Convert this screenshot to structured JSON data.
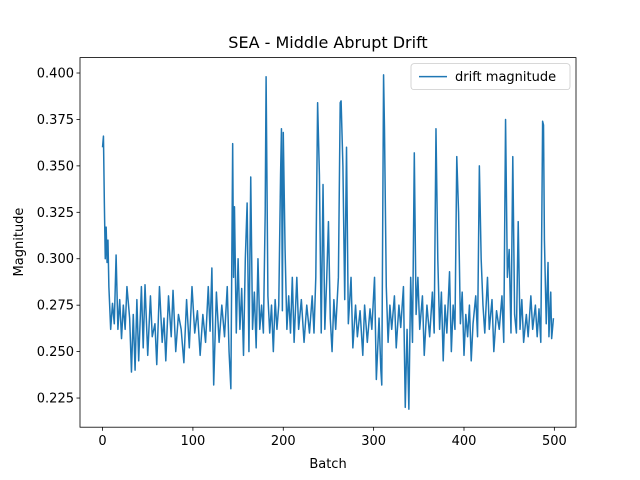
{
  "chart_data": {
    "type": "line",
    "title": "SEA - Middle Abrupt Drift",
    "xlabel": "Batch",
    "ylabel": "Magnitude",
    "x": [
      0,
      1,
      2,
      3,
      4,
      5,
      6,
      7,
      9,
      11,
      13,
      15,
      17,
      19,
      21,
      23,
      25,
      27,
      30,
      32,
      34,
      36,
      38,
      40,
      43,
      45,
      47,
      50,
      53,
      55,
      58,
      60,
      63,
      66,
      68,
      70,
      73,
      76,
      78,
      81,
      84,
      87,
      90,
      93,
      96,
      99,
      102,
      105,
      108,
      111,
      114,
      117,
      119,
      121,
      123,
      126,
      129,
      132,
      135,
      138,
      140,
      142,
      144,
      145,
      146,
      148,
      150,
      152,
      154,
      156,
      158,
      160,
      162,
      164,
      166,
      168,
      170,
      172,
      174,
      176,
      178,
      180,
      181,
      183,
      185,
      187,
      189,
      191,
      193,
      195,
      197,
      198,
      199,
      200,
      202,
      204,
      206,
      208,
      210,
      212,
      215,
      217,
      220,
      223,
      226,
      229,
      232,
      234,
      236,
      238,
      240,
      242,
      244,
      246,
      248,
      250,
      252,
      254,
      256,
      258,
      261,
      263,
      264,
      266,
      268,
      270,
      272,
      275,
      277,
      280,
      282,
      285,
      288,
      290,
      293,
      296,
      298,
      301,
      303,
      306,
      308,
      309,
      311,
      312,
      314,
      316,
      318,
      320,
      323,
      325,
      328,
      330,
      333,
      335,
      337,
      339,
      341,
      343,
      345,
      347,
      349,
      351,
      354,
      356,
      359,
      362,
      365,
      367,
      369,
      371,
      373,
      375,
      377,
      379,
      381,
      384,
      386,
      388,
      390,
      392,
      394,
      396,
      398,
      400,
      402,
      404,
      406,
      408,
      410,
      413,
      415,
      417,
      419,
      421,
      423,
      426,
      428,
      431,
      433,
      436,
      439,
      442,
      444,
      446,
      448,
      450,
      452,
      454,
      456,
      458,
      460,
      462,
      464,
      466,
      469,
      471,
      474,
      476,
      479,
      481,
      483,
      485,
      487,
      488,
      489,
      491,
      493,
      494,
      496,
      497,
      499
    ],
    "series": [
      {
        "name": "drift magnitude",
        "color": "#1f77b4",
        "values": [
          0.36,
          0.366,
          0.33,
          0.3,
          0.317,
          0.298,
          0.31,
          0.285,
          0.262,
          0.276,
          0.265,
          0.302,
          0.262,
          0.278,
          0.257,
          0.275,
          0.262,
          0.285,
          0.268,
          0.239,
          0.27,
          0.24,
          0.278,
          0.245,
          0.285,
          0.252,
          0.286,
          0.248,
          0.28,
          0.258,
          0.265,
          0.243,
          0.285,
          0.255,
          0.268,
          0.245,
          0.28,
          0.258,
          0.283,
          0.25,
          0.27,
          0.262,
          0.244,
          0.278,
          0.252,
          0.285,
          0.26,
          0.272,
          0.248,
          0.27,
          0.255,
          0.285,
          0.261,
          0.295,
          0.232,
          0.282,
          0.255,
          0.275,
          0.258,
          0.285,
          0.25,
          0.23,
          0.362,
          0.29,
          0.328,
          0.26,
          0.3,
          0.262,
          0.284,
          0.248,
          0.3,
          0.33,
          0.25,
          0.344,
          0.262,
          0.282,
          0.252,
          0.3,
          0.262,
          0.275,
          0.26,
          0.325,
          0.398,
          0.28,
          0.26,
          0.275,
          0.25,
          0.278,
          0.262,
          0.275,
          0.345,
          0.37,
          0.272,
          0.368,
          0.305,
          0.262,
          0.28,
          0.26,
          0.29,
          0.255,
          0.29,
          0.262,
          0.278,
          0.255,
          0.275,
          0.26,
          0.28,
          0.26,
          0.29,
          0.384,
          0.345,
          0.26,
          0.34,
          0.262,
          0.288,
          0.32,
          0.268,
          0.25,
          0.278,
          0.262,
          0.29,
          0.384,
          0.385,
          0.35,
          0.278,
          0.36,
          0.265,
          0.29,
          0.252,
          0.275,
          0.258,
          0.272,
          0.248,
          0.275,
          0.255,
          0.273,
          0.262,
          0.29,
          0.235,
          0.268,
          0.24,
          0.232,
          0.399,
          0.37,
          0.285,
          0.255,
          0.275,
          0.262,
          0.28,
          0.252,
          0.275,
          0.263,
          0.285,
          0.22,
          0.262,
          0.219,
          0.29,
          0.255,
          0.357,
          0.27,
          0.29,
          0.262,
          0.28,
          0.248,
          0.275,
          0.258,
          0.282,
          0.26,
          0.37,
          0.3,
          0.262,
          0.282,
          0.245,
          0.275,
          0.26,
          0.293,
          0.25,
          0.275,
          0.262,
          0.355,
          0.325,
          0.265,
          0.282,
          0.248,
          0.27,
          0.258,
          0.275,
          0.245,
          0.265,
          0.28,
          0.258,
          0.35,
          0.3,
          0.275,
          0.26,
          0.29,
          0.262,
          0.278,
          0.25,
          0.272,
          0.262,
          0.28,
          0.255,
          0.375,
          0.29,
          0.305,
          0.26,
          0.355,
          0.27,
          0.26,
          0.32,
          0.262,
          0.278,
          0.255,
          0.27,
          0.258,
          0.28,
          0.262,
          0.275,
          0.258,
          0.273,
          0.255,
          0.374,
          0.372,
          0.31,
          0.265,
          0.298,
          0.258,
          0.282,
          0.257,
          0.268
        ]
      }
    ],
    "xlim": [
      -24.95,
      523.95
    ],
    "xticks": [
      0,
      100,
      200,
      300,
      400,
      500
    ],
    "ylim": [
      0.2093,
      0.4083
    ],
    "yticks": [
      0.225,
      {
        "value": 0.25,
        "label": "0.250"
      },
      0.275,
      {
        "value": 0.3,
        "label": "0.300"
      },
      0.325,
      {
        "value": 0.35,
        "label": "0.350"
      },
      0.375,
      {
        "value": 0.4,
        "label": "0.400"
      }
    ],
    "legend": "upper right"
  }
}
